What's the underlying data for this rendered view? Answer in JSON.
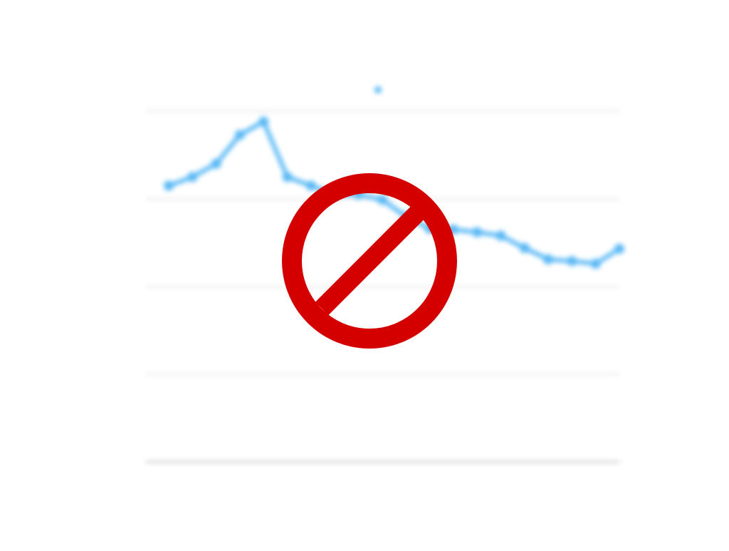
{
  "colors": {
    "background": "#ffffff",
    "series": "#5ab9f5",
    "grid": "#e2e2e2",
    "baseline": "#cfcfcf",
    "prohibited": "#d40000"
  },
  "icons": {
    "prohibited": "prohibited-icon"
  },
  "chart_data": {
    "type": "line",
    "title": "",
    "xlabel": "",
    "ylabel": "",
    "grid": true,
    "legend": "top-center",
    "ylim": [
      0,
      40
    ],
    "y_ticks": [
      0,
      10,
      20,
      30,
      40
    ],
    "y_tick_labels": [
      "",
      "",
      "",
      "",
      ""
    ],
    "x": [
      1,
      2,
      3,
      4,
      5,
      6,
      7,
      8,
      9,
      10,
      11,
      12,
      13,
      14,
      15,
      16,
      17,
      18,
      19,
      20
    ],
    "series": [
      {
        "name": "",
        "values": [
          31.5,
          32.5,
          34,
          37.3,
          38.8,
          32.5,
          31.5,
          30.5,
          30.5,
          29.9,
          28,
          26.6,
          26.5,
          26.2,
          25.8,
          24.4,
          23.1,
          22.9,
          22.6,
          24.3
        ],
        "point_labels": [
          "",
          "",
          "",
          "",
          "",
          "",
          "",
          "",
          "",
          "",
          "",
          "",
          "",
          "",
          "",
          "",
          "",
          "",
          "",
          ""
        ]
      }
    ]
  }
}
